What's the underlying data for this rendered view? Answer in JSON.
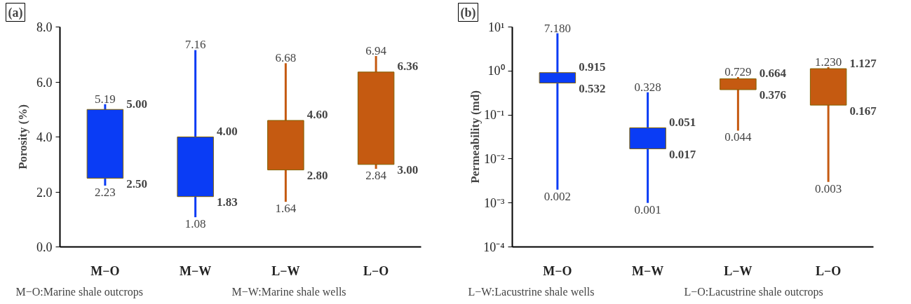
{
  "chart_data": [
    {
      "type": "candlestick",
      "title": "(a)",
      "ylabel": "Porosity (%)",
      "categories": [
        "M−O",
        "M−W",
        "L−W",
        "L−O"
      ],
      "ohlc": [
        [
          2.5,
          5.19,
          2.23,
          5.0
        ],
        [
          1.83,
          7.16,
          1.08,
          4.0
        ],
        [
          2.8,
          6.68,
          1.64,
          4.6
        ],
        [
          3.0,
          6.94,
          2.84,
          6.36
        ]
      ],
      "value_labels": [
        [
          "2.50",
          "5.19",
          "2.23",
          "5.00"
        ],
        [
          "1.83",
          "7.16",
          "1.08",
          "4.00"
        ],
        [
          "2.80",
          "6.68",
          "1.64",
          "4.60"
        ],
        [
          "3.00",
          "6.94",
          "2.84",
          "6.36"
        ]
      ],
      "colors": [
        "#0a3cf5",
        "#0a3cf5",
        "#c55a11",
        "#c55a11"
      ],
      "ylim": [
        0,
        8
      ],
      "yticks": [
        {
          "value": 0,
          "label": "0.0"
        },
        {
          "value": 2,
          "label": "2.0"
        },
        {
          "value": 4,
          "label": "4.0"
        },
        {
          "value": 6,
          "label": "6.0"
        },
        {
          "value": 8,
          "label": "8.0"
        }
      ],
      "grid": false,
      "annotations": [
        "M−O:Marine shale outcrops",
        "M−W:Marine shale wells"
      ]
    },
    {
      "type": "candlestick",
      "title": "(b)",
      "ylabel": "Permeability (md)",
      "categories": [
        "M−O",
        "M−W",
        "L−W",
        "L−O"
      ],
      "log": "y",
      "ohlc": [
        [
          0.532,
          7.18,
          0.002,
          0.915
        ],
        [
          0.017,
          0.328,
          0.001,
          0.051
        ],
        [
          0.376,
          0.729,
          0.044,
          0.664
        ],
        [
          0.167,
          1.23,
          0.003,
          1.127
        ]
      ],
      "value_labels": [
        [
          "0.532",
          "7.180",
          "0.002",
          "0.915"
        ],
        [
          "0.017",
          "0.328",
          "0.001",
          "0.051"
        ],
        [
          "0.376",
          "0.729",
          "0.044",
          "0.664"
        ],
        [
          "0.167",
          "1.230",
          "0.003",
          "1.127"
        ]
      ],
      "colors": [
        "#0a3cf5",
        "#0a3cf5",
        "#c55a11",
        "#c55a11"
      ],
      "ylim": [
        0.0001,
        10
      ],
      "yticks": [
        {
          "value": 0.0001,
          "label": "10⁻⁴"
        },
        {
          "value": 0.001,
          "label": "10⁻³"
        },
        {
          "value": 0.01,
          "label": "10⁻²"
        },
        {
          "value": 0.1,
          "label": "10⁻¹"
        },
        {
          "value": 1,
          "label": "10⁰"
        },
        {
          "value": 10,
          "label": "10¹"
        }
      ],
      "grid": false,
      "annotations": [
        "L−W:Lacustrine shale wells",
        "L−O:Lacustrine shale outcrops"
      ]
    }
  ]
}
